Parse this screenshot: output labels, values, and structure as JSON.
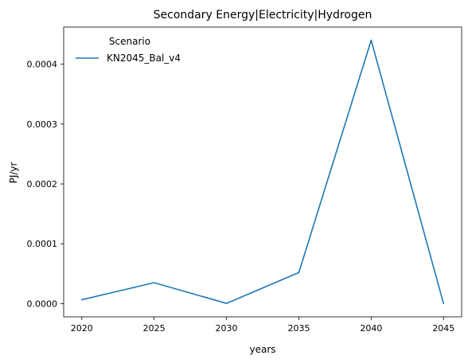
{
  "chart_data": {
    "type": "line",
    "title": "Secondary Energy|Electricity|Hydrogen",
    "xlabel": "years",
    "ylabel": "PJ/yr",
    "x": [
      2020,
      2025,
      2030,
      2035,
      2040,
      2045
    ],
    "xticks": [
      "2020",
      "2025",
      "2030",
      "2035",
      "2040",
      "2045"
    ],
    "yticks": [
      "0.0000",
      "0.0001",
      "0.0002",
      "0.0003",
      "0.0004"
    ],
    "ylim": [
      -2.2e-05,
      0.000462
    ],
    "xlim": [
      2018.75,
      2046.25
    ],
    "grid": false,
    "legend": {
      "title": "Scenario",
      "placement": "top-left"
    },
    "series": [
      {
        "name": "KN2045_Bal_v4",
        "color": "#1f77b4",
        "values": [
          6.5e-06,
          3.5e-05,
          5e-07,
          5.2e-05,
          0.00044,
          2e-07
        ]
      }
    ]
  }
}
